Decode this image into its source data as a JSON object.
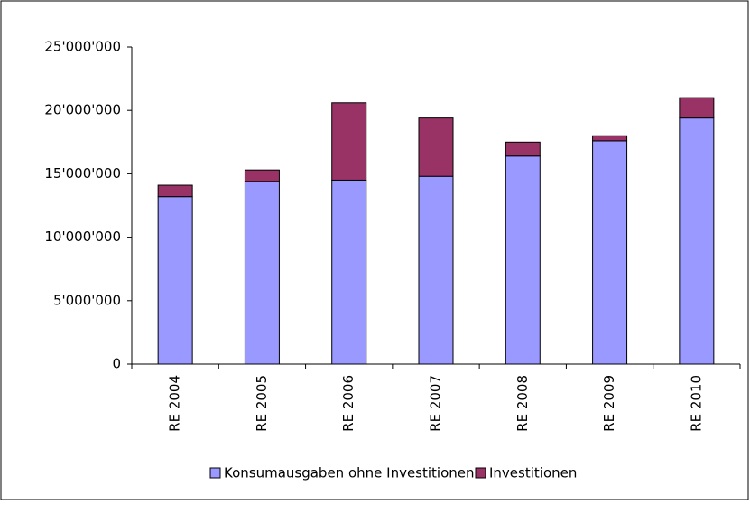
{
  "chart_data": {
    "type": "stacked_bar",
    "categories": [
      "RE 2004",
      "RE 2005",
      "RE 2006",
      "RE 2007",
      "RE 2008",
      "RE 2009",
      "RE 2010"
    ],
    "series": [
      {
        "name": "Konsumausgaben ohne Investitionen",
        "color": "#9999ff",
        "values": [
          13200000,
          14400000,
          14500000,
          14800000,
          16400000,
          17600000,
          19400000
        ]
      },
      {
        "name": "Investitionen",
        "color": "#993366",
        "values": [
          900000,
          900000,
          6100000,
          4600000,
          1100000,
          400000,
          1600000
        ]
      }
    ],
    "ylim": [
      0,
      25000000
    ],
    "yticks": [
      0,
      {
        "value": 5000000,
        "label": "5'000'000"
      },
      {
        "value": 10000000,
        "label": "10'000'000"
      },
      {
        "value": 15000000,
        "label": "15'000'000"
      },
      {
        "value": 20000000,
        "label": "20'000'000"
      },
      {
        "value": 25000000,
        "label": "25'000'000"
      }
    ],
    "legend": "bottom"
  }
}
